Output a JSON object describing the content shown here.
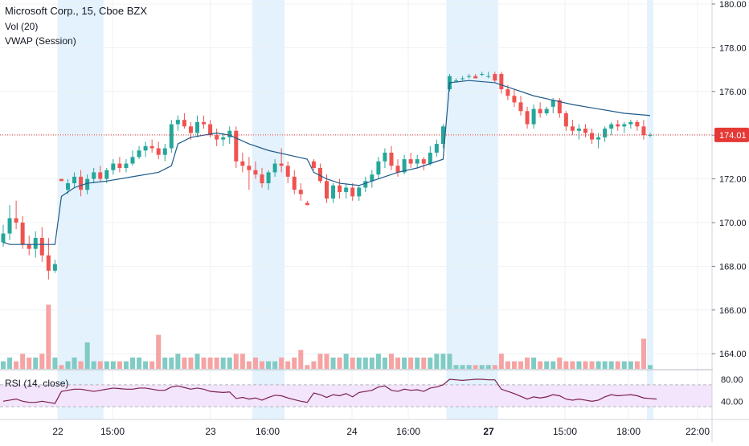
{
  "header": {
    "title": "Microsoft Corp., 15, Cboe BZX",
    "vol_label": "Vol (20)",
    "vwap_label": "VWAP (Session)"
  },
  "rsi": {
    "label": "RSI (14, close)",
    "ticks": [
      "80.00",
      "40.00"
    ]
  },
  "price_badge": "174.01",
  "colors": {
    "up": "#26a69a",
    "down": "#ef5350",
    "vol_up": "#80cbc4",
    "vol_down": "#f5a3a3",
    "vwap": "#1e5a8a",
    "session_shade": "#e3f2fd",
    "rsi_line": "#7b1f4e",
    "rsi_band": "#f3e5fb",
    "price_line": "#e53935"
  },
  "chart_data": {
    "type": "candlestick",
    "title": "Microsoft Corp., 15, Cboe BZX",
    "y_ticks": [
      "180.00",
      "178.00",
      "176.00",
      "174.00",
      "172.00",
      "170.00",
      "168.00",
      "166.00",
      "164.00"
    ],
    "ylim": [
      163.3,
      180.2
    ],
    "x_ticks": [
      "22",
      "15:00",
      "23",
      "16:00",
      "24",
      "16:00",
      "27",
      "15:00",
      "18:00",
      "22:00"
    ],
    "last_price": 174.01,
    "candles": [
      [
        169.1,
        169.9,
        168.9,
        169.5,
        2
      ],
      [
        169.5,
        170.8,
        169.2,
        170.2,
        3
      ],
      [
        170.2,
        171.0,
        169.7,
        170.0,
        2
      ],
      [
        170.0,
        170.3,
        168.8,
        169.0,
        4
      ],
      [
        169.0,
        169.4,
        168.5,
        168.8,
        3
      ],
      [
        168.8,
        169.6,
        168.4,
        169.3,
        3
      ],
      [
        169.3,
        169.8,
        168.2,
        168.5,
        4
      ],
      [
        168.5,
        169.3,
        167.4,
        167.8,
        17
      ],
      [
        167.8,
        168.3,
        167.7,
        168.1,
        3
      ],
      [
        172.0,
        172.0,
        171.9,
        171.9,
        1
      ],
      [
        171.5,
        172.0,
        171.3,
        171.8,
        2
      ],
      [
        171.8,
        172.3,
        171.6,
        172.1,
        3
      ],
      [
        172.1,
        172.4,
        171.2,
        171.5,
        2
      ],
      [
        171.5,
        172.2,
        171.3,
        172.0,
        7
      ],
      [
        172.0,
        172.5,
        171.8,
        172.3,
        2
      ],
      [
        172.3,
        172.6,
        171.9,
        172.0,
        2
      ],
      [
        172.0,
        172.5,
        171.8,
        172.4,
        2
      ],
      [
        172.4,
        172.9,
        172.2,
        172.7,
        2
      ],
      [
        172.7,
        173.0,
        172.3,
        172.5,
        2
      ],
      [
        172.5,
        172.9,
        172.3,
        172.7,
        2
      ],
      [
        172.7,
        173.3,
        172.6,
        173.0,
        3
      ],
      [
        173.0,
        173.5,
        172.9,
        173.3,
        3
      ],
      [
        173.3,
        173.7,
        173.0,
        173.5,
        2
      ],
      [
        173.5,
        173.8,
        173.2,
        173.4,
        2
      ],
      [
        173.4,
        173.7,
        172.9,
        173.1,
        9
      ],
      [
        173.1,
        173.6,
        172.8,
        173.4,
        3
      ],
      [
        173.4,
        174.7,
        173.2,
        174.5,
        3
      ],
      [
        174.5,
        174.9,
        174.2,
        174.7,
        4
      ],
      [
        174.7,
        175.0,
        174.3,
        174.4,
        3
      ],
      [
        174.4,
        174.6,
        173.8,
        174.1,
        3
      ],
      [
        174.1,
        174.9,
        173.9,
        174.6,
        4
      ],
      [
        174.6,
        174.9,
        174.3,
        174.5,
        3
      ],
      [
        174.5,
        174.7,
        173.9,
        174.0,
        3
      ],
      [
        174.0,
        174.3,
        173.5,
        173.8,
        3
      ],
      [
        173.8,
        174.1,
        173.5,
        173.9,
        3
      ],
      [
        173.9,
        174.4,
        173.6,
        174.2,
        3
      ],
      [
        174.2,
        174.4,
        172.5,
        172.8,
        4
      ],
      [
        172.8,
        173.2,
        172.3,
        172.6,
        4
      ],
      [
        172.6,
        173.0,
        171.5,
        172.4,
        2
      ],
      [
        172.4,
        172.8,
        172.0,
        172.2,
        3
      ],
      [
        172.2,
        172.5,
        171.6,
        171.8,
        2
      ],
      [
        171.8,
        172.4,
        171.5,
        172.3,
        2
      ],
      [
        172.3,
        172.9,
        172.1,
        172.7,
        2
      ],
      [
        172.7,
        173.4,
        172.3,
        172.6,
        3
      ],
      [
        172.6,
        172.8,
        171.8,
        172.1,
        2
      ],
      [
        172.1,
        172.4,
        171.3,
        171.5,
        3
      ],
      [
        171.5,
        171.8,
        171.0,
        171.3,
        5
      ],
      [
        170.9,
        171.0,
        170.8,
        170.8,
        1
      ],
      [
        172.8,
        172.9,
        172.4,
        172.5,
        2
      ],
      [
        172.5,
        172.7,
        171.8,
        171.9,
        4
      ],
      [
        171.9,
        172.2,
        170.9,
        171.1,
        4
      ],
      [
        171.1,
        171.8,
        170.9,
        171.7,
        3
      ],
      [
        171.7,
        172.0,
        171.1,
        171.4,
        3
      ],
      [
        171.4,
        171.8,
        171.1,
        171.6,
        4
      ],
      [
        171.6,
        171.8,
        171.0,
        171.2,
        3
      ],
      [
        171.2,
        171.7,
        171.0,
        171.6,
        3
      ],
      [
        171.6,
        172.1,
        171.4,
        171.9,
        3
      ],
      [
        171.9,
        172.4,
        171.6,
        172.2,
        3
      ],
      [
        172.2,
        173.0,
        172.0,
        172.8,
        4
      ],
      [
        172.8,
        173.4,
        172.5,
        173.2,
        3
      ],
      [
        173.2,
        173.5,
        172.4,
        172.6,
        4
      ],
      [
        172.6,
        172.9,
        172.1,
        172.3,
        3
      ],
      [
        172.3,
        173.1,
        172.2,
        172.9,
        3
      ],
      [
        172.9,
        173.2,
        172.5,
        172.7,
        3
      ],
      [
        172.7,
        173.1,
        172.5,
        172.9,
        3
      ],
      [
        172.9,
        173.0,
        172.4,
        172.7,
        3
      ],
      [
        172.7,
        173.5,
        172.6,
        173.2,
        3
      ],
      [
        173.2,
        173.8,
        173.0,
        173.6,
        4
      ],
      [
        173.6,
        174.5,
        173.4,
        174.4,
        4
      ],
      [
        176.1,
        176.8,
        176.0,
        176.7,
        4
      ],
      [
        176.5,
        176.6,
        176.4,
        176.5,
        1
      ],
      [
        176.6,
        176.7,
        176.5,
        176.6,
        1
      ],
      [
        176.7,
        176.8,
        176.6,
        176.7,
        1
      ],
      [
        176.7,
        176.8,
        176.6,
        176.6,
        1
      ],
      [
        176.8,
        176.9,
        176.7,
        176.8,
        1
      ],
      [
        176.7,
        176.9,
        176.6,
        176.7,
        1
      ],
      [
        176.8,
        176.9,
        176.4,
        176.5,
        1
      ],
      [
        176.8,
        176.9,
        175.9,
        176.1,
        4
      ],
      [
        176.1,
        176.3,
        175.6,
        175.8,
        2
      ],
      [
        175.8,
        176.1,
        175.3,
        175.5,
        2
      ],
      [
        175.5,
        175.8,
        174.9,
        175.1,
        2
      ],
      [
        175.1,
        175.3,
        174.3,
        174.5,
        3
      ],
      [
        174.5,
        175.4,
        174.3,
        175.2,
        3
      ],
      [
        175.2,
        175.5,
        174.8,
        175.0,
        2
      ],
      [
        175.0,
        175.3,
        174.9,
        175.2,
        2
      ],
      [
        175.3,
        175.7,
        175.0,
        175.6,
        2
      ],
      [
        175.6,
        175.7,
        174.8,
        175.0,
        3
      ],
      [
        175.0,
        175.1,
        174.2,
        174.4,
        2
      ],
      [
        174.4,
        174.7,
        174.0,
        174.2,
        2
      ],
      [
        174.2,
        174.5,
        173.8,
        174.3,
        2
      ],
      [
        174.3,
        174.5,
        173.9,
        174.1,
        2
      ],
      [
        174.1,
        174.3,
        173.6,
        173.8,
        2
      ],
      [
        173.8,
        174.1,
        173.4,
        173.9,
        2
      ],
      [
        173.9,
        174.4,
        173.7,
        174.3,
        2
      ],
      [
        174.3,
        174.6,
        174.0,
        174.5,
        2
      ],
      [
        174.5,
        174.7,
        174.2,
        174.4,
        2
      ],
      [
        174.4,
        174.6,
        174.1,
        174.5,
        2
      ],
      [
        174.5,
        174.7,
        174.3,
        174.6,
        2
      ],
      [
        174.6,
        174.7,
        174.2,
        174.4,
        2
      ],
      [
        174.4,
        174.7,
        173.8,
        174.0,
        8
      ],
      [
        174.0,
        174.1,
        173.9,
        174.01,
        1
      ]
    ],
    "vwap": [
      [
        0,
        169.1
      ],
      [
        1,
        169.0
      ],
      [
        2,
        169.0
      ],
      [
        3,
        169.0
      ],
      [
        4,
        169.0
      ],
      [
        5,
        169.0
      ],
      [
        6,
        169.0
      ],
      [
        7,
        169.0
      ],
      [
        8,
        169.0
      ],
      [
        9,
        171.2
      ],
      [
        11,
        171.6
      ],
      [
        13,
        171.8
      ],
      [
        16,
        171.9
      ],
      [
        20,
        172.1
      ],
      [
        24,
        172.3
      ],
      [
        26,
        172.6
      ],
      [
        27,
        173.6
      ],
      [
        29,
        173.9
      ],
      [
        31,
        174.0
      ],
      [
        33,
        174.1
      ],
      [
        35,
        174.0
      ],
      [
        38,
        173.6
      ],
      [
        41,
        173.3
      ],
      [
        44,
        173.1
      ],
      [
        47,
        172.9
      ],
      [
        48,
        172.3
      ],
      [
        50,
        172.0
      ],
      [
        52,
        171.8
      ],
      [
        55,
        171.7
      ],
      [
        58,
        172.0
      ],
      [
        61,
        172.3
      ],
      [
        64,
        172.5
      ],
      [
        68,
        172.9
      ],
      [
        69,
        176.4
      ],
      [
        72,
        176.5
      ],
      [
        76,
        176.4
      ],
      [
        79,
        176.1
      ],
      [
        82,
        175.8
      ],
      [
        85,
        175.6
      ],
      [
        88,
        175.4
      ],
      [
        92,
        175.2
      ],
      [
        96,
        175.0
      ],
      [
        100,
        174.9
      ]
    ],
    "sessions": [
      [
        9,
        16
      ],
      [
        39,
        44
      ],
      [
        69,
        77
      ],
      [
        100,
        101
      ]
    ],
    "rsi": [
      40,
      42,
      44,
      40,
      38,
      38,
      40,
      38,
      36,
      58,
      60,
      62,
      62,
      60,
      58,
      60,
      62,
      64,
      63,
      62,
      62,
      64,
      64,
      62,
      60,
      60,
      66,
      68,
      65,
      62,
      64,
      62,
      58,
      57,
      56,
      57,
      45,
      47,
      44,
      46,
      42,
      47,
      51,
      50,
      46,
      43,
      40,
      38,
      55,
      52,
      47,
      52,
      50,
      54,
      48,
      56,
      58,
      60,
      66,
      68,
      60,
      58,
      62,
      60,
      61,
      58,
      64,
      66,
      70,
      80,
      79,
      78,
      79,
      80,
      80,
      79,
      79,
      62,
      58,
      54,
      49,
      44,
      48,
      46,
      48,
      52,
      50,
      44,
      42,
      44,
      42,
      40,
      42,
      48,
      52,
      50,
      51,
      52,
      50,
      46,
      45,
      44
    ]
  }
}
